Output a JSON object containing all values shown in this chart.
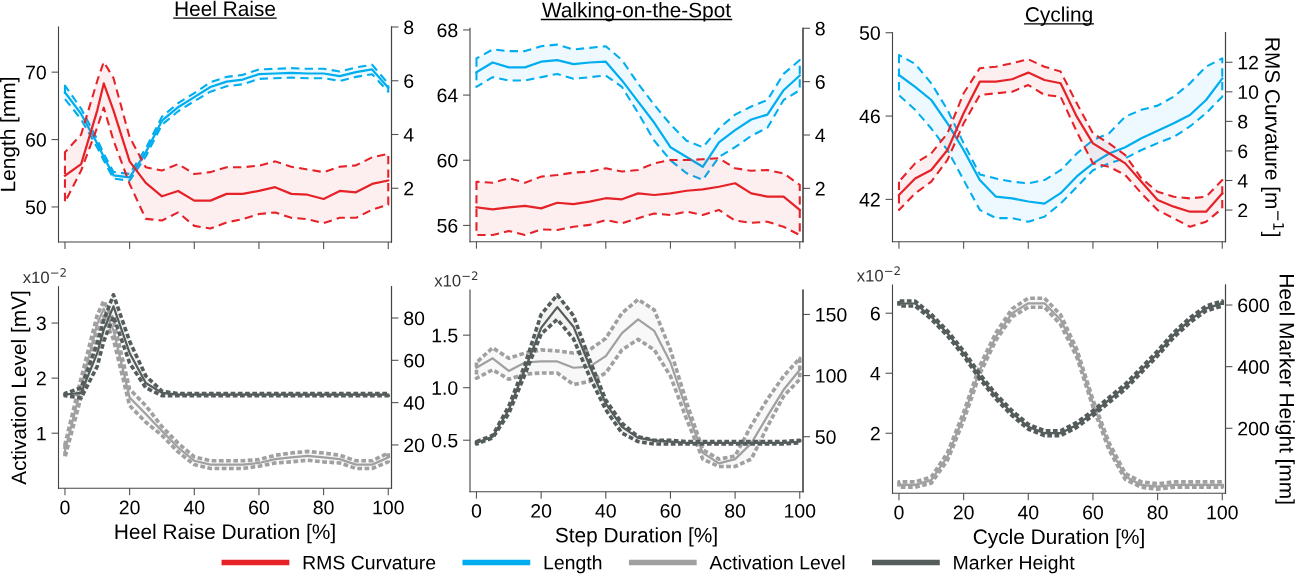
{
  "chart_data": [
    {
      "type": "line",
      "title": "Heel Raise",
      "ylabel": "Length [mm]",
      "tick_labels": "y",
      "legend": "bottom",
      "x": [
        0,
        5,
        10,
        12,
        15,
        20,
        25,
        30,
        35,
        40,
        45,
        50,
        55,
        60,
        65,
        70,
        75,
        80,
        85,
        90,
        95,
        100
      ],
      "xlim": [
        -2,
        101
      ],
      "xticks": [
        0,
        20,
        40,
        60,
        80,
        100
      ],
      "ylim": [
        44.8,
        76.7
      ],
      "yticks": [
        50,
        60,
        70
      ],
      "y2lim": [
        0,
        8
      ],
      "y2ticks": [
        2,
        4,
        6,
        8
      ],
      "series": [
        {
          "name": "RMS Curvature",
          "color": "#e62229",
          "axis": "y2",
          "values": [
            2.47,
            2.9,
            4.9,
            5.9,
            4.9,
            3.0,
            2.2,
            1.7,
            1.9,
            1.54,
            1.54,
            1.79,
            1.79,
            1.9,
            2.04,
            1.79,
            1.76,
            1.6,
            1.9,
            1.85,
            2.16,
            2.29
          ],
          "upper": [
            3.34,
            4.0,
            6.0,
            6.7,
            6.1,
            3.9,
            2.78,
            2.66,
            2.9,
            2.53,
            2.6,
            2.78,
            2.78,
            2.84,
            3.0,
            2.8,
            2.7,
            2.6,
            2.8,
            2.85,
            3.15,
            3.28
          ],
          "lower": [
            1.48,
            2.66,
            4.27,
            5.0,
            3.78,
            2.16,
            0.86,
            0.8,
            1.1,
            0.6,
            0.5,
            0.73,
            0.85,
            1.04,
            1.1,
            0.9,
            0.85,
            0.7,
            0.9,
            0.9,
            1.2,
            1.39
          ]
        },
        {
          "name": "Length",
          "color": "#00aeef",
          "values": [
            67.0,
            63.8,
            59.4,
            57.4,
            54.7,
            54.4,
            58.1,
            62.8,
            64.8,
            66.3,
            67.8,
            68.6,
            68.9,
            69.7,
            69.8,
            69.9,
            69.8,
            69.8,
            69.4,
            70.0,
            70.4,
            67.7
          ],
          "upper": [
            68.0,
            64.6,
            60.0,
            57.9,
            55.2,
            54.9,
            58.7,
            63.4,
            65.4,
            66.9,
            68.5,
            69.3,
            69.6,
            70.4,
            70.5,
            70.6,
            70.5,
            70.5,
            70.1,
            70.7,
            71.1,
            68.3
          ],
          "lower": [
            66.0,
            63.0,
            58.8,
            56.9,
            54.2,
            53.9,
            57.5,
            62.2,
            64.2,
            65.7,
            67.1,
            67.9,
            68.2,
            69.0,
            69.1,
            69.2,
            69.1,
            69.1,
            68.7,
            69.3,
            69.7,
            67.1
          ]
        }
      ]
    },
    {
      "type": "line",
      "title": "Walking-on-the-Spot",
      "tick_labels": "y",
      "x": [
        0,
        5,
        10,
        15,
        20,
        25,
        30,
        35,
        40,
        45,
        50,
        55,
        60,
        65,
        70,
        75,
        80,
        85,
        90,
        95,
        100
      ],
      "xlim": [
        -2,
        101
      ],
      "xticks": [
        0,
        20,
        40,
        60,
        80,
        100
      ],
      "ylim": [
        55.0,
        68.1
      ],
      "yticks": [
        56,
        60,
        64,
        68
      ],
      "y2lim": [
        0,
        8
      ],
      "y2ticks": [
        2,
        4,
        6,
        8
      ],
      "series": [
        {
          "name": "RMS Curvature",
          "color": "#e62229",
          "axis": "y2",
          "values": [
            1.29,
            1.21,
            1.29,
            1.34,
            1.25,
            1.46,
            1.41,
            1.5,
            1.63,
            1.59,
            1.81,
            1.75,
            1.81,
            1.91,
            1.96,
            2.06,
            2.19,
            1.81,
            1.69,
            1.69,
            1.19
          ],
          "upper": [
            2.25,
            2.21,
            2.38,
            2.21,
            2.44,
            2.5,
            2.59,
            2.63,
            2.75,
            2.63,
            2.69,
            2.94,
            3.06,
            3.06,
            3.09,
            3.13,
            2.75,
            2.66,
            2.69,
            2.56,
            2.13
          ],
          "lower": [
            0.25,
            0.25,
            0.4,
            0.25,
            0.46,
            0.44,
            0.56,
            0.63,
            0.81,
            0.69,
            0.88,
            1.06,
            1.0,
            1.13,
            1.0,
            1.19,
            0.79,
            0.71,
            0.75,
            0.56,
            0.25
          ]
        },
        {
          "name": "Length",
          "color": "#00aeef",
          "values": [
            65.4,
            66.0,
            65.7,
            65.7,
            66.05,
            66.15,
            65.9,
            66.0,
            66.05,
            64.9,
            63.6,
            62.3,
            60.8,
            60.2,
            59.6,
            61.1,
            61.85,
            62.5,
            62.8,
            64.3,
            65.2
          ],
          "upper": [
            66.25,
            66.8,
            66.7,
            66.7,
            67.0,
            67.1,
            66.8,
            66.9,
            67.0,
            66.15,
            64.7,
            63.4,
            62.2,
            61.2,
            60.8,
            61.95,
            62.8,
            63.3,
            63.7,
            65.3,
            66.15
          ],
          "lower": [
            64.5,
            65.1,
            64.9,
            64.9,
            65.1,
            65.3,
            65.0,
            65.1,
            65.2,
            64.5,
            62.9,
            61.2,
            60.0,
            59.2,
            58.8,
            60.2,
            60.8,
            61.5,
            62.0,
            63.7,
            64.3
          ]
        }
      ]
    },
    {
      "type": "line",
      "title": "Cycling",
      "y2label": "RMS Curvature [m$^{−1}$]",
      "tick_labels": "y",
      "x": [
        0,
        5,
        10,
        15,
        20,
        25,
        30,
        35,
        40,
        45,
        50,
        55,
        60,
        65,
        70,
        75,
        80,
        85,
        90,
        95,
        100
      ],
      "xlim": [
        -2,
        101
      ],
      "xticks": [
        0,
        20,
        40,
        60,
        80,
        100
      ],
      "ylim": [
        39.97,
        50
      ],
      "yticks": [
        42,
        46,
        50
      ],
      "y2lim": [
        -0.14,
        14.0
      ],
      "y2ticks": [
        2,
        4,
        6,
        8,
        10,
        12
      ],
      "series": [
        {
          "name": "RMS Curvature",
          "color": "#e62229",
          "axis": "y2",
          "values": [
            3.02,
            4.14,
            4.71,
            6.06,
            8.55,
            10.69,
            10.69,
            10.85,
            11.3,
            10.8,
            10.58,
            8.32,
            6.51,
            5.84,
            5.16,
            3.92,
            2.68,
            2.23,
            1.89,
            1.89,
            3.13
          ],
          "upper": [
            3.92,
            5.16,
            5.84,
            7.19,
            9.9,
            11.6,
            11.7,
            11.93,
            12.2,
            11.7,
            11.37,
            9.22,
            7.19,
            6.51,
            5.72,
            4.14,
            3.24,
            2.9,
            2.79,
            2.9,
            4.03
          ],
          "lower": [
            2.0,
            3.13,
            3.92,
            5.39,
            7.87,
            9.79,
            9.9,
            10.01,
            10.46,
            9.79,
            9.67,
            7.3,
            5.16,
            4.93,
            4.37,
            3.13,
            2.0,
            1.44,
            0.87,
            1.21,
            2.11
          ]
        },
        {
          "name": "Length",
          "color": "#00aeef",
          "values": [
            47.97,
            47.4,
            46.77,
            45.65,
            44.37,
            42.93,
            42.13,
            42.05,
            41.9,
            41.8,
            42.3,
            43.1,
            43.73,
            44.2,
            44.5,
            44.93,
            45.3,
            45.65,
            46.05,
            46.77,
            47.8
          ],
          "upper": [
            48.93,
            48.5,
            47.57,
            46.3,
            44.7,
            43.2,
            43.0,
            42.85,
            42.77,
            42.93,
            43.4,
            44.2,
            44.85,
            45.17,
            45.97,
            46.3,
            46.5,
            46.93,
            47.57,
            48.37,
            48.77
          ],
          "lower": [
            47.0,
            46.3,
            45.4,
            44.37,
            42.93,
            41.5,
            41.1,
            41.1,
            40.93,
            41.17,
            41.8,
            42.6,
            43.4,
            43.73,
            43.97,
            44.37,
            44.7,
            45.0,
            45.5,
            46.14,
            46.93
          ]
        }
      ]
    },
    {
      "type": "line",
      "ylabel": "Activation Level [mV]",
      "xlabel": "Heel Raise Duration [%]",
      "legend": "bottom",
      "annotations": [
        "x10$^{−2}$"
      ],
      "x": [
        0,
        5,
        10,
        12,
        15,
        20,
        25,
        30,
        35,
        40,
        45,
        50,
        55,
        60,
        65,
        70,
        75,
        80,
        85,
        90,
        95,
        100
      ],
      "xlim": [
        -2,
        101
      ],
      "xticks": [
        0,
        20,
        40,
        60,
        80,
        100
      ],
      "ylim": [
        0,
        3.66
      ],
      "yticks": [
        1,
        2,
        3
      ],
      "y2lim": [
        -0.5,
        94.8
      ],
      "y2ticks": [
        20,
        40,
        60,
        80
      ],
      "series": [
        {
          "name": "Activation Level",
          "color": "#a0a0a0",
          "values": [
            0.68,
            1.83,
            2.99,
            3.26,
            2.87,
            1.65,
            1.35,
            1.04,
            0.74,
            0.5,
            0.43,
            0.43,
            0.43,
            0.46,
            0.53,
            0.56,
            0.59,
            0.56,
            0.53,
            0.43,
            0.43,
            0.56
          ],
          "upper": [
            0.8,
            2.0,
            3.15,
            3.4,
            3.05,
            1.8,
            1.5,
            1.12,
            0.82,
            0.57,
            0.5,
            0.5,
            0.5,
            0.52,
            0.6,
            0.64,
            0.67,
            0.64,
            0.6,
            0.5,
            0.5,
            0.64
          ],
          "lower": [
            0.56,
            1.66,
            2.83,
            3.12,
            2.7,
            1.5,
            1.2,
            0.96,
            0.66,
            0.43,
            0.36,
            0.36,
            0.36,
            0.4,
            0.46,
            0.48,
            0.51,
            0.48,
            0.46,
            0.36,
            0.36,
            0.48
          ]
        },
        {
          "name": "Marker Height",
          "color": "#555c5c",
          "axis": "y2",
          "values": [
            43.8,
            44.6,
            63.5,
            74.5,
            85.5,
            63.5,
            49.3,
            44.6,
            43.8,
            43.8,
            43.8,
            43.8,
            43.8,
            43.8,
            43.8,
            43.8,
            43.8,
            43.8,
            43.8,
            43.8,
            43.8,
            43.8
          ],
          "upper": [
            44.3,
            47,
            68,
            79,
            91,
            69,
            52.6,
            45.4,
            44.3,
            44.3,
            44.3,
            44.3,
            44.3,
            44.3,
            44.3,
            44.3,
            44.3,
            44.3,
            44.3,
            44.3,
            44.3,
            44.3
          ],
          "lower": [
            43.3,
            42.2,
            57.2,
            69,
            80.8,
            58.7,
            47,
            43.3,
            43.3,
            43.3,
            43.3,
            43.3,
            43.3,
            43.3,
            43.3,
            43.3,
            43.3,
            43.3,
            43.3,
            43.3,
            43.3,
            43.3
          ]
        }
      ]
    },
    {
      "type": "line",
      "xlabel": "Step Duration [%]",
      "annotations": [
        "x10$^{−2}$"
      ],
      "x": [
        0,
        5,
        10,
        15,
        20,
        25,
        30,
        35,
        40,
        45,
        50,
        55,
        60,
        65,
        70,
        75,
        80,
        85,
        90,
        95,
        100
      ],
      "xlim": [
        -2,
        101
      ],
      "xticks": [
        0,
        20,
        40,
        60,
        80,
        100
      ],
      "ylim": [
        0.01,
        1.93
      ],
      "yticks": [
        0.5,
        {
          "value": 1,
          "label": "1.0"
        },
        1.5
      ],
      "y2lim": [
        5,
        170
      ],
      "y2ticks": [
        50,
        100,
        150
      ],
      "series": [
        {
          "name": "Activation Level",
          "color": "#a0a0a0",
          "values": [
            1.19,
            1.28,
            1.16,
            1.24,
            1.25,
            1.25,
            1.19,
            1.2,
            1.3,
            1.52,
            1.65,
            1.54,
            1.24,
            0.79,
            0.38,
            0.28,
            0.32,
            0.47,
            0.73,
            0.98,
            1.17
          ],
          "upper": [
            1.24,
            1.38,
            1.28,
            1.33,
            1.36,
            1.35,
            1.33,
            1.36,
            1.47,
            1.71,
            1.84,
            1.74,
            1.36,
            0.86,
            0.41,
            0.32,
            0.35,
            0.64,
            0.89,
            1.11,
            1.28
          ],
          "lower": [
            1.09,
            1.17,
            1.08,
            1.13,
            1.14,
            1.14,
            1.03,
            1.06,
            1.14,
            1.36,
            1.46,
            1.36,
            1.11,
            0.7,
            0.32,
            0.25,
            0.25,
            0.32,
            0.63,
            0.92,
            1.08
          ]
        },
        {
          "name": "Marker Height",
          "color": "#555c5c",
          "axis": "y2",
          "values": [
            45,
            50,
            72,
            105,
            139,
            156,
            140,
            108,
            77,
            58,
            49,
            47,
            46,
            45,
            45,
            45,
            45,
            45,
            45,
            45,
            46
          ],
          "upper": [
            46,
            51,
            75,
            109,
            150,
            166,
            149,
            113,
            80,
            61,
            50,
            47,
            47,
            46,
            46,
            46,
            46,
            46,
            46,
            46,
            47
          ],
          "lower": [
            44,
            49,
            69,
            101,
            134,
            146,
            130,
            99,
            72,
            53,
            46,
            44,
            44,
            44,
            44,
            44,
            44,
            44,
            44,
            44,
            45
          ]
        }
      ]
    },
    {
      "type": "line",
      "xlabel": "Cycle Duration [%]",
      "y2label": "Heel Marker Height [mm]",
      "annotations": [
        "x10$^{−2}$"
      ],
      "x": [
        0,
        5,
        10,
        15,
        20,
        25,
        30,
        35,
        40,
        45,
        50,
        55,
        60,
        65,
        70,
        75,
        80,
        85,
        90,
        95,
        100
      ],
      "xlim": [
        -2,
        101
      ],
      "xticks": [
        0,
        20,
        40,
        60,
        80,
        100
      ],
      "ylim": [
        0,
        6.94
      ],
      "yticks": [
        2,
        4,
        6
      ],
      "y2lim": [
        -11,
        665
      ],
      "y2ticks": [
        200,
        400,
        600
      ],
      "series": [
        {
          "name": "Activation Level",
          "color": "#a0a0a0",
          "values": [
            0.28,
            0.28,
            0.44,
            1.22,
            2.56,
            4.11,
            5.22,
            6.0,
            6.33,
            6.33,
            5.78,
            4.67,
            3.0,
            1.56,
            0.56,
            0.28,
            0.22,
            0.28,
            0.28,
            0.28,
            0.28
          ],
          "upper": [
            0.38,
            0.38,
            0.54,
            1.35,
            2.7,
            4.25,
            5.35,
            6.15,
            6.5,
            6.5,
            5.95,
            4.8,
            3.12,
            1.68,
            0.66,
            0.38,
            0.32,
            0.38,
            0.38,
            0.38,
            0.38
          ],
          "lower": [
            0.2,
            0.2,
            0.34,
            1.1,
            2.42,
            3.97,
            5.1,
            5.88,
            6.2,
            6.2,
            5.62,
            4.54,
            2.88,
            1.44,
            0.46,
            0.2,
            0.14,
            0.2,
            0.2,
            0.2,
            0.2
          ]
        },
        {
          "name": "Marker Height",
          "color": "#555c5c",
          "axis": "y2",
          "values": [
            605,
            605,
            562,
            508,
            443,
            368,
            303,
            249,
            205,
            184,
            184,
            211,
            249,
            292,
            335,
            389,
            443,
            503,
            551,
            589,
            605
          ],
          "upper": [
            613,
            613,
            570,
            516,
            451,
            376,
            311,
            257,
            213,
            192,
            192,
            219,
            257,
            300,
            343,
            397,
            451,
            511,
            559,
            597,
            613
          ],
          "lower": [
            597,
            597,
            554,
            500,
            435,
            360,
            295,
            241,
            197,
            176,
            176,
            203,
            241,
            284,
            327,
            381,
            435,
            495,
            543,
            581,
            597
          ]
        }
      ]
    }
  ]
}
